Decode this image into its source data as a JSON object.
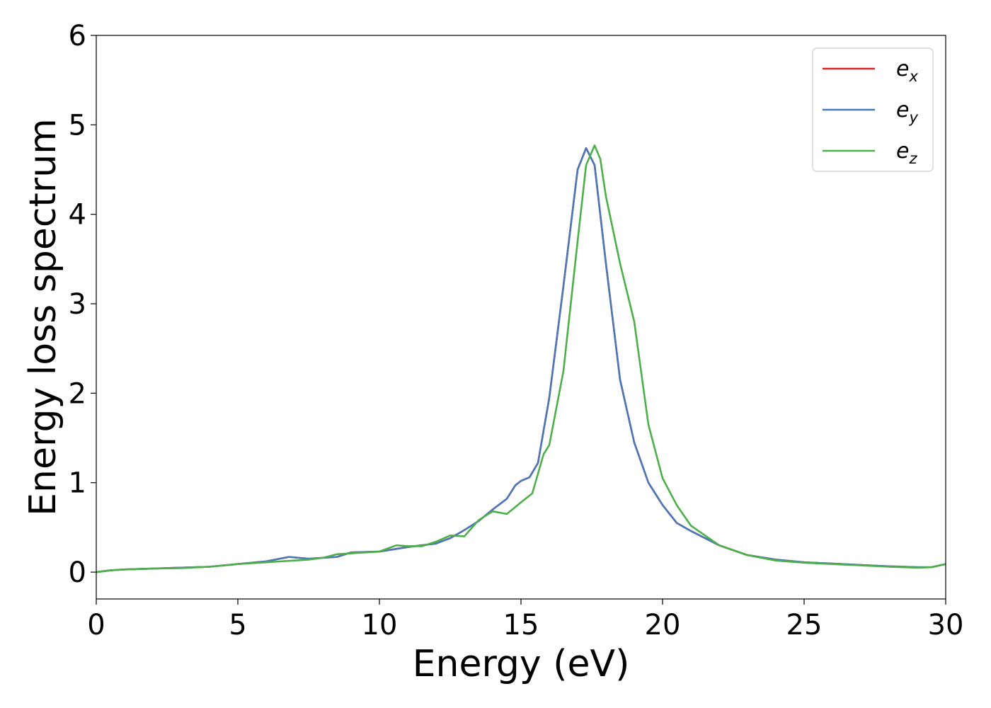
{
  "chart_data": {
    "type": "line",
    "title": "",
    "xlabel": "Energy (eV)",
    "ylabel": "Energy loss spectrum",
    "xlim": [
      0,
      30
    ],
    "ylim": [
      -0.3,
      6
    ],
    "xticks": [
      "0",
      "5",
      "10",
      "15",
      "20",
      "25",
      "30"
    ],
    "yticks": [
      "0",
      "1",
      "2",
      "3",
      "4",
      "5",
      "6"
    ],
    "xtick_values": [
      0,
      5,
      10,
      15,
      20,
      25,
      30
    ],
    "ytick_values": [
      0,
      1,
      2,
      3,
      4,
      5,
      6
    ],
    "grid": false,
    "legend_position": "top-right",
    "series": [
      {
        "name": "e",
        "subscript": "x",
        "color": "#d62728",
        "x": [
          0,
          0.5,
          1,
          2,
          3,
          4,
          5,
          6,
          6.8,
          7.5,
          8,
          8.5,
          9,
          10,
          11,
          12,
          12.5,
          13,
          13.5,
          14,
          14.5,
          14.8,
          15,
          15.3,
          15.6,
          16,
          16.5,
          17,
          17.3,
          17.6,
          18,
          18.5,
          19,
          19.5,
          20,
          20.5,
          21,
          22,
          23,
          24,
          25,
          26,
          27,
          28,
          29,
          29.5,
          30
        ],
        "y": [
          0,
          0.02,
          0.03,
          0.04,
          0.05,
          0.06,
          0.09,
          0.12,
          0.17,
          0.15,
          0.16,
          0.17,
          0.22,
          0.23,
          0.28,
          0.32,
          0.38,
          0.47,
          0.57,
          0.7,
          0.82,
          0.97,
          1.02,
          1.06,
          1.22,
          1.95,
          3.2,
          4.5,
          4.74,
          4.55,
          3.45,
          2.15,
          1.45,
          1.0,
          0.75,
          0.55,
          0.46,
          0.3,
          0.19,
          0.14,
          0.11,
          0.095,
          0.08,
          0.065,
          0.055,
          0.055,
          0.09
        ]
      },
      {
        "name": "e",
        "subscript": "y",
        "color": "#4a78b8",
        "x": [
          0,
          0.5,
          1,
          2,
          3,
          4,
          5,
          6,
          6.8,
          7.5,
          8,
          8.5,
          9,
          10,
          11,
          12,
          12.5,
          13,
          13.5,
          14,
          14.5,
          14.8,
          15,
          15.3,
          15.6,
          16,
          16.5,
          17,
          17.3,
          17.6,
          18,
          18.5,
          19,
          19.5,
          20,
          20.5,
          21,
          22,
          23,
          24,
          25,
          26,
          27,
          28,
          29,
          29.5,
          30
        ],
        "y": [
          0,
          0.02,
          0.03,
          0.04,
          0.05,
          0.06,
          0.09,
          0.12,
          0.17,
          0.15,
          0.16,
          0.17,
          0.22,
          0.23,
          0.28,
          0.32,
          0.38,
          0.47,
          0.57,
          0.7,
          0.82,
          0.97,
          1.02,
          1.06,
          1.22,
          1.95,
          3.2,
          4.5,
          4.74,
          4.55,
          3.45,
          2.15,
          1.45,
          1.0,
          0.75,
          0.55,
          0.46,
          0.3,
          0.19,
          0.14,
          0.11,
          0.095,
          0.08,
          0.065,
          0.055,
          0.055,
          0.09
        ]
      },
      {
        "name": "e",
        "subscript": "z",
        "color": "#4daf4a",
        "x": [
          0,
          0.5,
          1,
          2,
          3,
          4,
          5,
          6,
          7,
          7.5,
          8,
          8.5,
          9,
          10,
          10.6,
          11,
          11.5,
          12,
          12.5,
          13,
          13.5,
          14,
          14.5,
          15,
          15.4,
          15.8,
          16,
          16.5,
          17,
          17.3,
          17.6,
          17.8,
          18,
          18.5,
          19,
          19.5,
          20,
          20.5,
          21,
          22,
          23,
          24,
          25,
          26,
          27,
          28,
          29,
          29.5,
          30
        ],
        "y": [
          0,
          0.02,
          0.03,
          0.04,
          0.045,
          0.06,
          0.09,
          0.11,
          0.13,
          0.14,
          0.16,
          0.2,
          0.21,
          0.23,
          0.3,
          0.29,
          0.29,
          0.34,
          0.41,
          0.4,
          0.58,
          0.68,
          0.65,
          0.78,
          0.88,
          1.32,
          1.42,
          2.25,
          3.7,
          4.55,
          4.77,
          4.62,
          4.2,
          3.45,
          2.8,
          1.65,
          1.05,
          0.75,
          0.52,
          0.3,
          0.19,
          0.13,
          0.105,
          0.09,
          0.075,
          0.06,
          0.05,
          0.055,
          0.09
        ]
      }
    ]
  }
}
